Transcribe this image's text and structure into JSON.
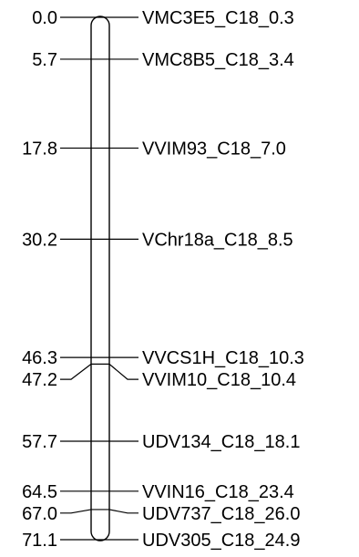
{
  "chart_data": {
    "type": "linkage-map",
    "unit": "cM",
    "range": [
      0.0,
      71.1
    ],
    "loci": [
      {
        "position": "0.0",
        "marker": "VMC3E5_C18_0.3"
      },
      {
        "position": "5.7",
        "marker": "VMC8B5_C18_3.4"
      },
      {
        "position": "17.8",
        "marker": "VVIM93_C18_7.0"
      },
      {
        "position": "30.2",
        "marker": "VChr18a_C18_8.5"
      },
      {
        "position": "46.3",
        "marker": "VVCS1H_C18_10.3"
      },
      {
        "position": "47.2",
        "marker": "VVIM10_C18_10.4"
      },
      {
        "position": "57.7",
        "marker": "UDV134_C18_18.1"
      },
      {
        "position": "64.5",
        "marker": "VVIN16_C18_23.4"
      },
      {
        "position": "67.0",
        "marker": "UDV737_C18_26.0"
      },
      {
        "position": "71.1",
        "marker": "UDV305_C18_24.9"
      }
    ]
  }
}
